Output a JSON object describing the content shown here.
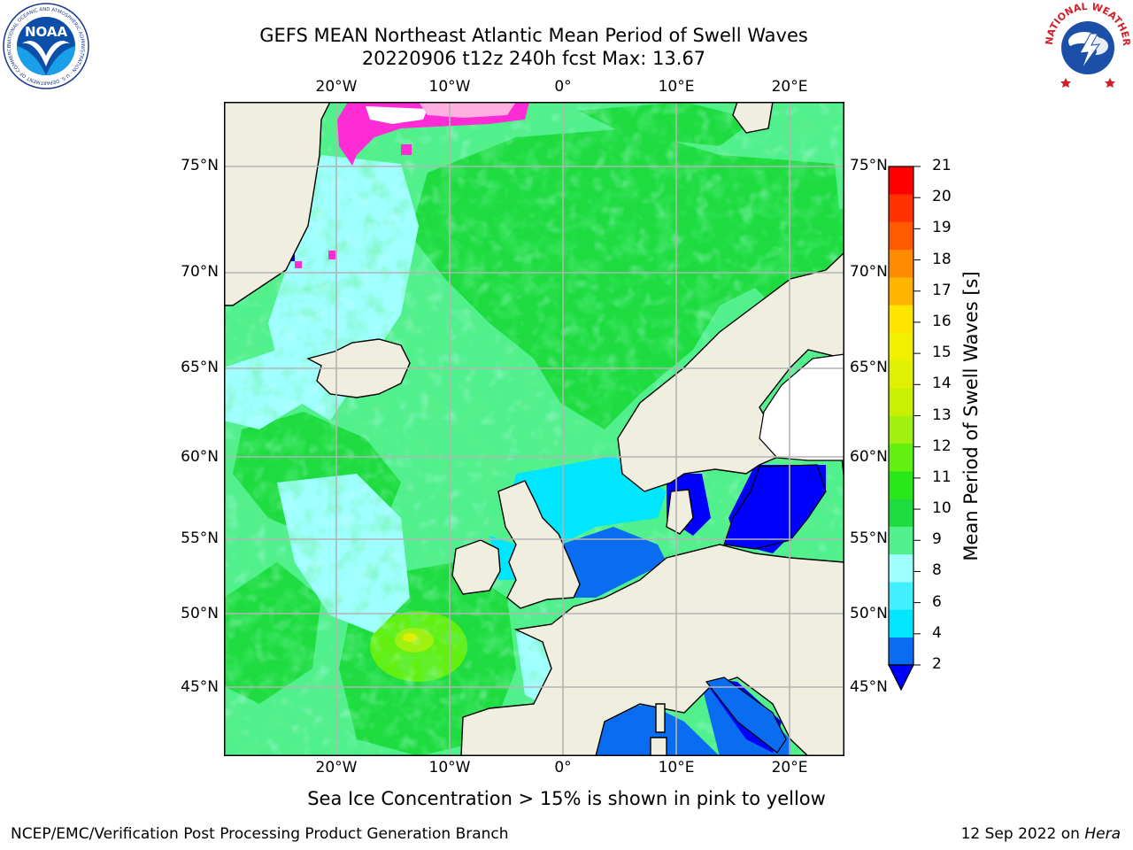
{
  "title_line1": "GEFS MEAN Northeast Atlantic Mean Period of Swell Waves",
  "title_line2": "20220906 t12z 240h fcst   Max: 13.67",
  "noaa_logo": {
    "text": "NOAA",
    "ring_text": "NATIONAL OCEANIC AND ATMOSPHERIC ADMINISTRATION · U.S. DEPARTMENT OF COMMERCE"
  },
  "nws_logo": {
    "ring_text": "NATIONAL WEATHER SERVICE"
  },
  "lon_labels": [
    "20°W",
    "10°W",
    "0°",
    "10°E",
    "20°E"
  ],
  "lat_labels": [
    "75°N",
    "70°N",
    "65°N",
    "60°N",
    "55°N",
    "50°N",
    "45°N"
  ],
  "colorbar": {
    "label": "Mean Period of Swell Waves [s]",
    "ticks": [
      "21",
      "20",
      "19",
      "18",
      "17",
      "16",
      "15",
      "14",
      "13",
      "12",
      "11",
      "10",
      "9",
      "8",
      "6",
      "4",
      "2"
    ],
    "colors_bottom_to_top": [
      "#0a6cf0",
      "#00e6ff",
      "#40f0ff",
      "#a0ffff",
      "#50f08c",
      "#1edc40",
      "#2ae818",
      "#62f010",
      "#a2f010",
      "#c8f000",
      "#e0f000",
      "#f0f000",
      "#ffe600",
      "#ffb400",
      "#ff8c00",
      "#ff5a00",
      "#ff3200",
      "#ff0000"
    ],
    "under_color": "#0000ff"
  },
  "colors": {
    "land": "#efeedf",
    "coast": "#000000",
    "grid": "#b4b4b4",
    "sea_ice": "#ff2cd6",
    "ocean_base": "#50f08c"
  },
  "caption": "Sea Ice Concentration > 15% is shown in pink to yellow",
  "footer_left": "NCEP/EMC/Verification Post Processing Product Generation Branch",
  "footer_date": "12 Sep 2022 on",
  "footer_host": "Hera"
}
